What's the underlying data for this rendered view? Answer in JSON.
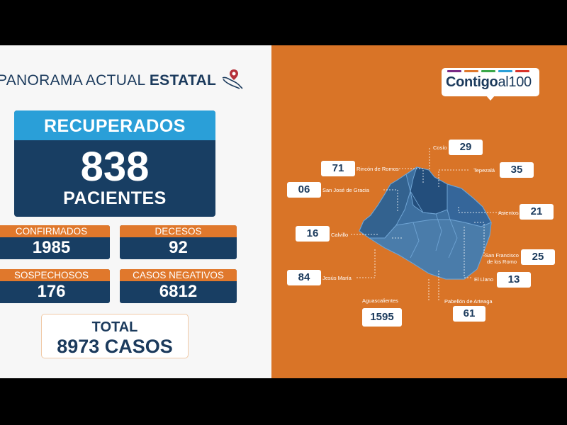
{
  "panel": {
    "title_regular": "PANORAMA ACTUAL ",
    "title_bold": "ESTATAL",
    "recovered": {
      "label": "RECUPERADOS",
      "value": "838",
      "unit": "PACIENTES"
    },
    "stats": [
      {
        "label": "CONFIRMADOS",
        "value": "1985"
      },
      {
        "label": "DECESOS",
        "value": "92"
      },
      {
        "label": "SOSPECHOSOS",
        "value": "176"
      },
      {
        "label": "CASOS NEGATIVOS",
        "value": "6812"
      }
    ],
    "total": {
      "label": "TOTAL",
      "value": "8973 CASOS"
    }
  },
  "logo": {
    "text_bold": "Contigo",
    "text_regular": "al100"
  },
  "municipalities": [
    {
      "name": "Cosío",
      "count": "29"
    },
    {
      "name": "Rincón de Romos",
      "count": "71"
    },
    {
      "name": "Tepezalá",
      "count": "35"
    },
    {
      "name": "San José de Gracia",
      "count": "06"
    },
    {
      "name": "Asientos",
      "count": "21"
    },
    {
      "name": "Calvillo",
      "count": "16"
    },
    {
      "name": "San Francisco de los Romo",
      "count": "25"
    },
    {
      "name": "Jesús María",
      "count": "84"
    },
    {
      "name": "El Llano",
      "count": "13"
    },
    {
      "name": "Aguascalientes",
      "count": "1595"
    },
    {
      "name": "Pabellón de Arteaga",
      "count": "61"
    }
  ],
  "colors": {
    "navy": "#183e63",
    "sky": "#2a9fd8",
    "orange": "#e0782c",
    "panel_orange": "#d97427",
    "map_blue": "#3d6f9f",
    "map_dark": "#234e7c"
  }
}
